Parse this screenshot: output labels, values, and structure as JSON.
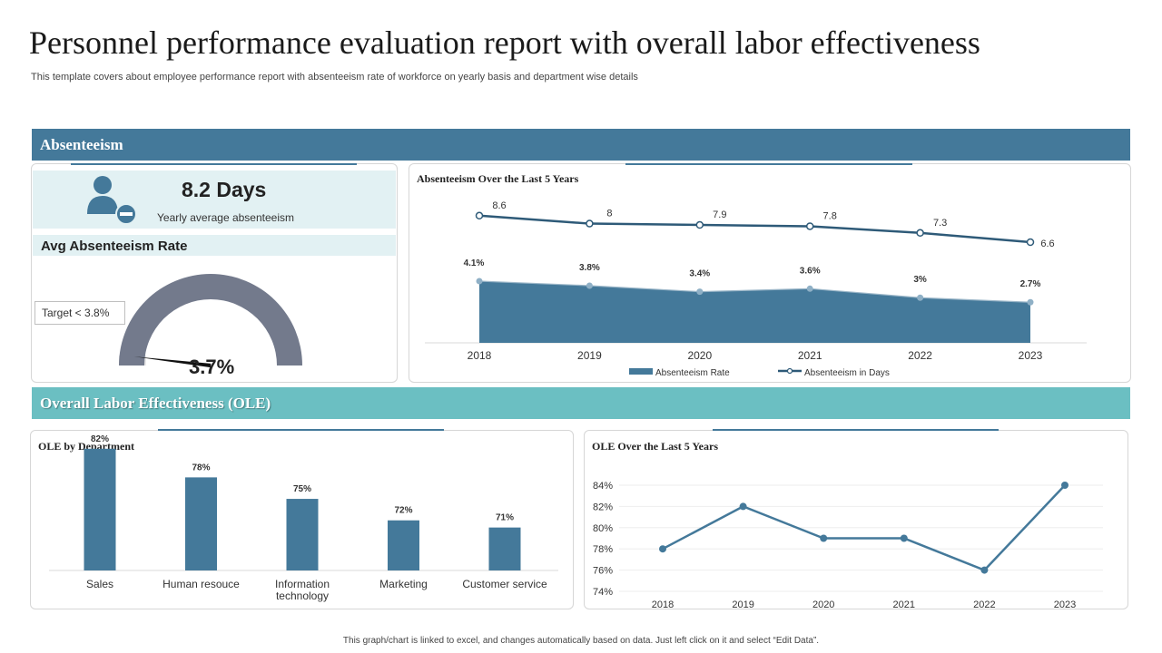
{
  "page": {
    "title": "Personnel performance evaluation report with overall labor effectiveness",
    "subtitle": "This template covers about employee performance report with absenteeism rate of  workforce on yearly basis and department wise details",
    "footer": "This graph/chart is linked to excel, and changes automatically based on data. Just left click on it and select “Edit Data”."
  },
  "colors": {
    "primary": "#44799a",
    "teal": "#6bbfc2",
    "gauge": "#737a8c",
    "light_panel": "#e2f1f3"
  },
  "absenteeism": {
    "section_label": "Absenteeism",
    "kpi_value": "8.2 Days",
    "kpi_label": "Yearly average absenteeism",
    "kpi_icon": "user-minus-icon",
    "rate_label": "Avg Absenteeism Rate",
    "target_label": "Target  < 3.8%",
    "gauge_value": "3.7%",
    "gauge_percent": 3.7
  },
  "ole": {
    "section_label": "Overall Labor Effectiveness (OLE)"
  },
  "chart_data": [
    {
      "type": "area",
      "title": "Absenteeism Over  the Last 5 Years",
      "categories": [
        "2018",
        "2019",
        "2020",
        "2021",
        "2022",
        "2023"
      ],
      "series": [
        {
          "name": "Absenteeism Rate",
          "values": [
            4.1,
            3.8,
            3.4,
            3.6,
            3.0,
            2.7
          ],
          "labels": [
            "4.1%",
            "3.8%",
            "3.4%",
            "3.6%",
            "3%",
            "2.7%"
          ]
        },
        {
          "name": "Absenteeism in Days",
          "values": [
            8.6,
            8,
            7.9,
            7.8,
            7.3,
            6.6
          ],
          "labels": [
            "8.6",
            "8",
            "7.9",
            "7.8",
            "7.3",
            "6.6"
          ]
        }
      ],
      "legend": [
        "Absenteeism Rate",
        "Absenteeism in Days"
      ],
      "legend_position": "bottom"
    },
    {
      "type": "bar",
      "title": "OLE  by Department",
      "categories": [
        "Sales",
        "Human resouce",
        "Information technology",
        "Marketing",
        "Customer service"
      ],
      "category_lines": [
        [
          "Sales"
        ],
        [
          "Human resouce"
        ],
        [
          "Information",
          "technology"
        ],
        [
          "Marketing"
        ],
        [
          "Customer service"
        ]
      ],
      "values": [
        82,
        78,
        75,
        72,
        71
      ],
      "labels": [
        "82%",
        "78%",
        "75%",
        "72%",
        "71%"
      ],
      "ylim": [
        65,
        84
      ]
    },
    {
      "type": "line",
      "title": "OLE  Over  the Last 5 Years",
      "categories": [
        "2018",
        "2019",
        "2020",
        "2021",
        "2022",
        "2023"
      ],
      "values": [
        78,
        82,
        79,
        79,
        76,
        84
      ],
      "ylim": [
        74,
        84
      ],
      "yticks": [
        "74%",
        "76%",
        "78%",
        "80%",
        "82%",
        "84%"
      ]
    }
  ]
}
